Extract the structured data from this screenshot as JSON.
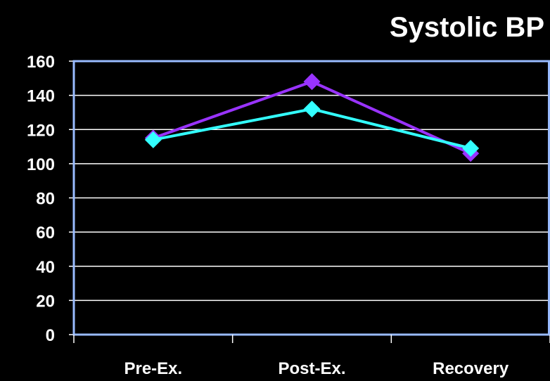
{
  "chart_data": {
    "type": "line",
    "title": "Systolic BP",
    "xlabel": "",
    "ylabel": "",
    "categories": [
      "Pre-Ex.",
      "Post-Ex.",
      "Recovery"
    ],
    "ylim": [
      0,
      160
    ],
    "yticks": [
      0,
      20,
      40,
      60,
      80,
      100,
      120,
      140,
      160
    ],
    "grid": true,
    "legend": "none",
    "series": [
      {
        "values": [
          115,
          148,
          106
        ],
        "color": "#9933FF",
        "marker": "diamond"
      },
      {
        "values": [
          114,
          132,
          109
        ],
        "color": "#33FFFF",
        "marker": "diamond"
      }
    ],
    "colors": {
      "background": "#000000",
      "plot_border": "#99BBFF",
      "gridline": "#FFFFFF",
      "text": "#FFFFFF"
    }
  }
}
